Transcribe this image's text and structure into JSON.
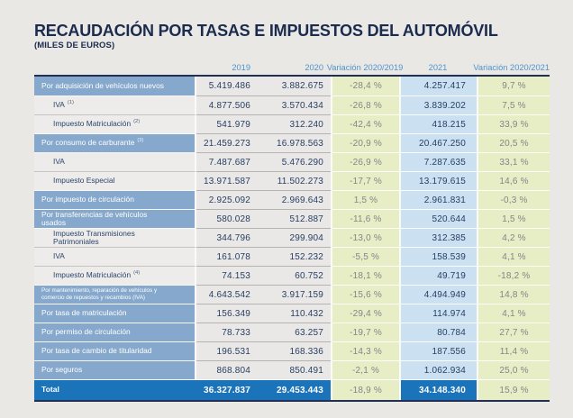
{
  "chart_data": {
    "type": "table",
    "title": "RECAUDACIÓN POR TASAS E IMPUESTOS DEL AUTOMÓVIL",
    "subtitle": "(MILES DE EUROS)",
    "columns": [
      "2019",
      "2020",
      "Variación 2020/2019",
      "2021",
      "Variación 2020/2021"
    ],
    "rows": [
      {
        "label": "Por adquisición de vehículos nuevos",
        "footnote": "",
        "level": "category",
        "values": [
          "5.419.486",
          "3.882.675",
          "-28,4 %",
          "4.257.417",
          "9,7 %"
        ]
      },
      {
        "label": "IVA",
        "footnote": "(1)",
        "level": "sub",
        "values": [
          "4.877.506",
          "3.570.434",
          "-26,8 %",
          "3.839.202",
          "7,5 %"
        ]
      },
      {
        "label": "Impuesto Matriculación",
        "footnote": "(2)",
        "level": "sub",
        "values": [
          "541.979",
          "312.240",
          "-42,4 %",
          "418.215",
          "33,9 %"
        ]
      },
      {
        "label": "Por consumo de carburante",
        "footnote": "(3)",
        "level": "category",
        "values": [
          "21.459.273",
          "16.978.563",
          "-20,9 %",
          "20.467.250",
          "20,5 %"
        ]
      },
      {
        "label": "IVA",
        "footnote": "",
        "level": "sub",
        "values": [
          "7.487.687",
          "5.476.290",
          "-26,9 %",
          "7.287.635",
          "33,1 %"
        ]
      },
      {
        "label": "Impuesto Especial",
        "footnote": "",
        "level": "sub",
        "values": [
          "13.971.587",
          "11.502.273",
          "-17,7 %",
          "13.179.615",
          "14,6 %"
        ]
      },
      {
        "label": "Por impuesto de circulación",
        "footnote": "",
        "level": "category",
        "values": [
          "2.925.092",
          "2.969.643",
          "1,5 %",
          "2.961.831",
          "-0,3 %"
        ]
      },
      {
        "label": "Por transferencias de vehículos usados",
        "footnote": "",
        "level": "category",
        "values": [
          "580.028",
          "512.887",
          "-11,6 %",
          "520.644",
          "1,5 %"
        ]
      },
      {
        "label": "Impuesto Transmisiones Patrimoniales",
        "footnote": "",
        "level": "sub",
        "values": [
          "344.796",
          "299.904",
          "-13,0 %",
          "312.385",
          "4,2 %"
        ]
      },
      {
        "label": "IVA",
        "footnote": "",
        "level": "sub",
        "values": [
          "161.078",
          "152.232",
          "-5,5 %",
          "158.539",
          "4,1 %"
        ]
      },
      {
        "label": "Impuesto Matriculación",
        "footnote": "(4)",
        "level": "sub",
        "values": [
          "74.153",
          "60.752",
          "-18,1 %",
          "49.719",
          "-18,2 %"
        ]
      },
      {
        "label": "Por mantenimiento, reparación de vehículos y comercio de repuestos y recambios (IVA)",
        "footnote": "",
        "level": "category-small",
        "values": [
          "4.643.542",
          "3.917.159",
          "-15,6 %",
          "4.494.949",
          "14,8 %"
        ]
      },
      {
        "label": "Por tasa de matriculación",
        "footnote": "",
        "level": "category",
        "values": [
          "156.349",
          "110.432",
          "-29,4 %",
          "114.974",
          "4,1 %"
        ]
      },
      {
        "label": "Por permiso de circulación",
        "footnote": "",
        "level": "category",
        "values": [
          "78.733",
          "63.257",
          "-19,7 %",
          "80.784",
          "27,7 %"
        ]
      },
      {
        "label": "Por tasa de cambio de titularidad",
        "footnote": "",
        "level": "category",
        "values": [
          "196.531",
          "168.336",
          "-14,3 %",
          "187.556",
          "11,4 %"
        ]
      },
      {
        "label": "Por seguros",
        "footnote": "",
        "level": "category",
        "values": [
          "868.804",
          "850.491",
          "-2,1 %",
          "1.062.934",
          "25,0 %"
        ]
      },
      {
        "label": "Total",
        "footnote": "",
        "level": "total",
        "values": [
          "36.327.837",
          "29.453.443",
          "-18,9 %",
          "34.148.340",
          "15,9 %"
        ]
      }
    ]
  },
  "colors": {
    "page_background": "#eae8e5",
    "title_navy": "#1b2b4e",
    "header_blue": "#4f93cb",
    "category_row_blue": "#85a8cc",
    "total_row_blue": "#1b73ba",
    "variation_green": "#e7eec6",
    "year2021_blue": "#cbe1f2",
    "value_cell_grey": "#e9e8e6",
    "value_navy": "#273e63",
    "percent_grey": "#84858a",
    "table_border_navy": "#222f55"
  }
}
